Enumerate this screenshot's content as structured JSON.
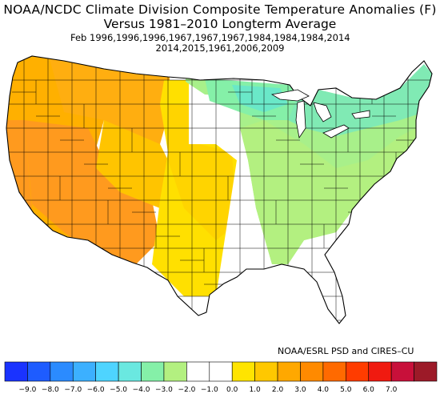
{
  "title": {
    "line1": "NOAA/NCDC Climate Division Composite Temperature Anomalies (F)",
    "line2": "Versus 1981–2010 Longterm Average",
    "line3": "Feb   1996,1996,1996,1967,1967,1967,1984,1984,1984,2014",
    "line4": "2014,2015,1961,2006,2009"
  },
  "credit": "NOAA/ESRL PSD and CIRES–CU",
  "legend": {
    "colors": [
      "#1a33ff",
      "#1e5cff",
      "#2b8bff",
      "#3cb0ff",
      "#4ed4ff",
      "#6ae8e0",
      "#85f0a8",
      "#b3f080",
      "#ffffff",
      "#ffffff",
      "#ffe400",
      "#ffc800",
      "#ffa800",
      "#ff8a00",
      "#ff6a00",
      "#ff3c00",
      "#f01a10",
      "#c8103a",
      "#9c1a28"
    ],
    "labels": [
      "−9.0",
      "−8.0",
      "−7.0",
      "−6.0",
      "−5.0",
      "−4.0",
      "−3.0",
      "−2.0",
      "−1.0",
      "0.0",
      "1.0",
      "2.0",
      "3.0",
      "4.0",
      "5.0",
      "6.0",
      "7.0"
    ]
  },
  "map_colors": {
    "dark_orange": "#ff9a1e",
    "orange": "#ffb000",
    "light_orange": "#ffc400",
    "yellow": "#ffe000",
    "white": "#ffffff",
    "light_green": "#b3f080",
    "green": "#85f0a8",
    "teal": "#6ae8c8"
  }
}
